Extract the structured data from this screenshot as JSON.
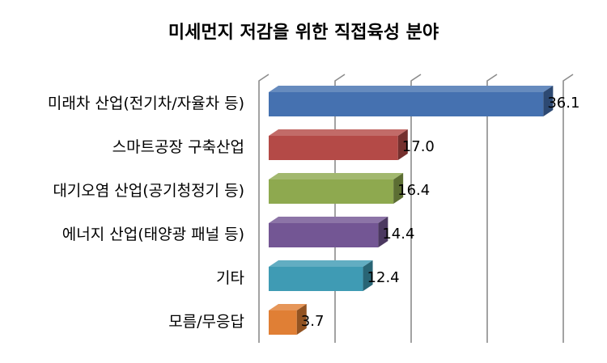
{
  "chart_data": {
    "type": "bar",
    "orientation": "horizontal",
    "style": "3d",
    "title": "미세먼지 저감을 위한 직접육성 분야",
    "categories": [
      "미래차 산업(전기차/자율차 등)",
      "스마트공장 구축산업",
      "대기오염 산업(공기청정기 등)",
      "에너지 산업(태양광 패널 등)",
      "기타",
      "모름/무응답"
    ],
    "values": [
      36.1,
      17.0,
      16.4,
      14.4,
      12.4,
      3.7
    ],
    "value_labels": [
      "36.1",
      "17.0",
      "16.4",
      "14.4",
      "12.4",
      "3.7"
    ],
    "xlim": [
      0,
      40
    ],
    "grid": true,
    "legend": "none",
    "colors": [
      "#4571b0",
      "#b44a47",
      "#8ea94f",
      "#735694",
      "#3f9bb4",
      "#e07f35"
    ]
  }
}
